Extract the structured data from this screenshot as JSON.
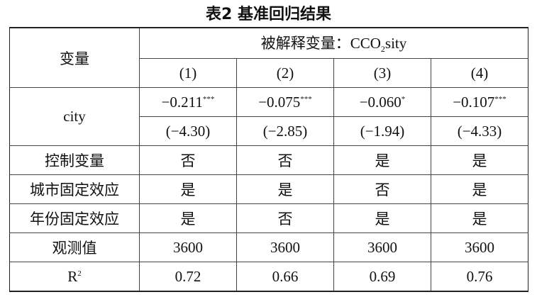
{
  "title": "表2 基准回归结果",
  "table": {
    "header": {
      "variable": "变量",
      "dependent": {
        "prefix": "被解释变量：CCO",
        "sub": "2",
        "suffix": "sity"
      },
      "columns": [
        "(1)",
        "(2)",
        "(3)",
        "(4)"
      ]
    },
    "city": {
      "label": "city",
      "coefficients": [
        {
          "value": "−0.211",
          "stars": "***"
        },
        {
          "value": "−0.075",
          "stars": "***"
        },
        {
          "value": "−0.060",
          "stars": "*"
        },
        {
          "value": "−0.107",
          "stars": "***"
        }
      ],
      "t_values": [
        "(−4.30)",
        "(−2.85)",
        "(−1.94)",
        "(−4.33)"
      ]
    },
    "rows": [
      {
        "label": "控制变量",
        "values": [
          "否",
          "否",
          "是",
          "是"
        ]
      },
      {
        "label": "城市固定效应",
        "values": [
          "是",
          "是",
          "否",
          "是"
        ]
      },
      {
        "label": "年份固定效应",
        "values": [
          "是",
          "否",
          "是",
          "是"
        ]
      },
      {
        "label": "观测值",
        "values": [
          3600,
          3600,
          3600,
          3600
        ]
      }
    ],
    "r2": {
      "label": {
        "text": "R",
        "sup": "2"
      },
      "values": [
        0.72,
        0.66,
        0.69,
        0.76
      ]
    }
  }
}
